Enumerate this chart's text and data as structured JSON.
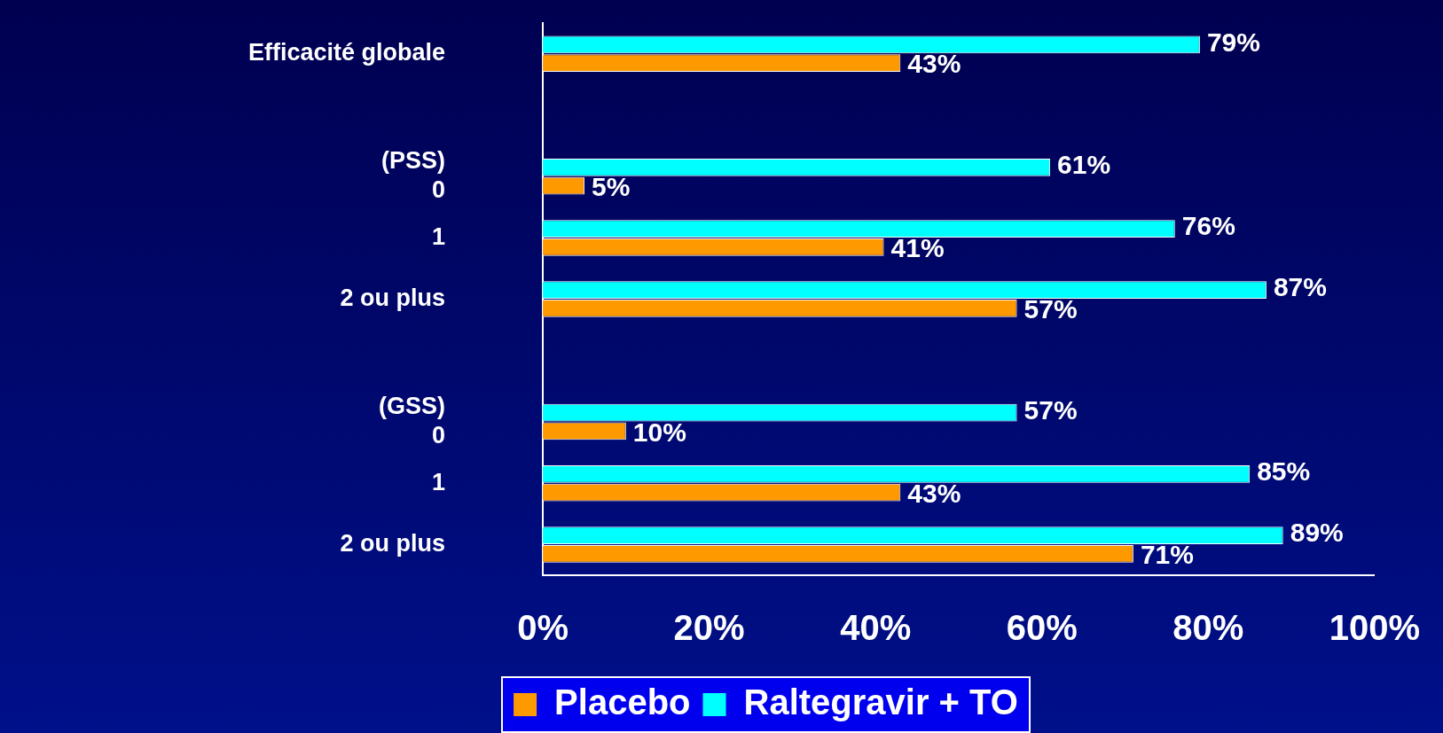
{
  "chart_data": {
    "type": "bar",
    "orientation": "horizontal",
    "categories": [
      "Efficacité globale",
      null,
      "(PSS)\n0",
      "1",
      "2 ou plus",
      null,
      "(GSS)\n0",
      "1",
      "2 ou plus"
    ],
    "series": [
      {
        "name": "Raltegravir + TO",
        "color": "#00ffff",
        "values": [
          79,
          null,
          61,
          76,
          87,
          null,
          57,
          85,
          89
        ],
        "value_labels": [
          "79%",
          null,
          "61%",
          "76%",
          "87%",
          null,
          "57%",
          "85%",
          "89%"
        ]
      },
      {
        "name": "Placebo",
        "color": "#ff9900",
        "values": [
          43,
          null,
          5,
          41,
          57,
          null,
          10,
          43,
          71
        ],
        "value_labels": [
          "43%",
          null,
          "5%",
          "41%",
          "57%",
          null,
          "10%",
          "43%",
          "71%"
        ]
      }
    ],
    "xlim": [
      0,
      100
    ],
    "xticks": [
      {
        "value": 0,
        "label": "0%"
      },
      {
        "value": 20,
        "label": "20%"
      },
      {
        "value": 40,
        "label": "40%"
      },
      {
        "value": 60,
        "label": "60%"
      },
      {
        "value": 80,
        "label": "80%"
      },
      {
        "value": 100,
        "label": "100%"
      }
    ],
    "grid": false,
    "legend": "bottom"
  }
}
